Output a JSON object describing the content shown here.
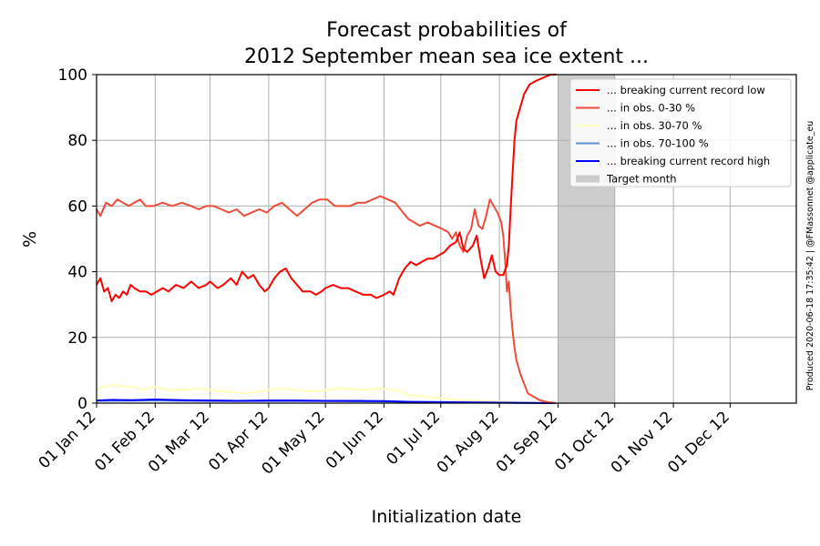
{
  "chart_data": {
    "type": "line",
    "title": "Forecast probabilities of\n2012 September mean sea ice extent ...",
    "title_lines": [
      "Forecast probabilities of",
      "2012 September mean sea ice extent ..."
    ],
    "xlabel": "Initialization date",
    "ylabel": "%",
    "ylim": [
      0,
      100
    ],
    "yticks": [
      0,
      20,
      40,
      60,
      80,
      100
    ],
    "xlim": [
      "2012-01-01",
      "2013-01-05"
    ],
    "xticks": [
      {
        "date": "2012-01-01",
        "label": "01 Jan 12"
      },
      {
        "date": "2012-02-01",
        "label": "01 Feb 12"
      },
      {
        "date": "2012-03-01",
        "label": "01 Mar 12"
      },
      {
        "date": "2012-04-01",
        "label": "01 Apr 12"
      },
      {
        "date": "2012-05-01",
        "label": "01 May 12"
      },
      {
        "date": "2012-06-01",
        "label": "01 Jun 12"
      },
      {
        "date": "2012-07-01",
        "label": "01 Jul 12"
      },
      {
        "date": "2012-08-01",
        "label": "01 Aug 12"
      },
      {
        "date": "2012-09-01",
        "label": "01 Sep 12"
      },
      {
        "date": "2012-10-01",
        "label": "01 Oct 12"
      },
      {
        "date": "2012-11-01",
        "label": "01 Nov 12"
      },
      {
        "date": "2012-12-01",
        "label": "01 Dec 12"
      }
    ],
    "grid": true,
    "legend_position": "top-right",
    "target_month": {
      "label": "Target month",
      "start": "2012-09-01",
      "end": "2012-10-01",
      "color": "#cccccc"
    },
    "series": [
      {
        "name": "... breaking current record low",
        "color": "#ff0000",
        "points": [
          [
            "2012-01-01",
            36
          ],
          [
            "2012-01-03",
            38
          ],
          [
            "2012-01-05",
            34
          ],
          [
            "2012-01-07",
            35
          ],
          [
            "2012-01-09",
            31
          ],
          [
            "2012-01-11",
            33
          ],
          [
            "2012-01-13",
            32
          ],
          [
            "2012-01-15",
            34
          ],
          [
            "2012-01-17",
            33
          ],
          [
            "2012-01-19",
            36
          ],
          [
            "2012-01-21",
            35
          ],
          [
            "2012-01-24",
            34
          ],
          [
            "2012-01-27",
            34
          ],
          [
            "2012-01-30",
            33
          ],
          [
            "2012-02-02",
            34
          ],
          [
            "2012-02-05",
            35
          ],
          [
            "2012-02-08",
            34
          ],
          [
            "2012-02-12",
            36
          ],
          [
            "2012-02-16",
            35
          ],
          [
            "2012-02-20",
            37
          ],
          [
            "2012-02-24",
            35
          ],
          [
            "2012-02-28",
            36
          ],
          [
            "2012-03-01",
            37
          ],
          [
            "2012-03-05",
            35
          ],
          [
            "2012-03-08",
            36
          ],
          [
            "2012-03-12",
            38
          ],
          [
            "2012-03-15",
            36
          ],
          [
            "2012-03-18",
            40
          ],
          [
            "2012-03-21",
            38
          ],
          [
            "2012-03-24",
            39
          ],
          [
            "2012-03-27",
            36
          ],
          [
            "2012-03-30",
            34
          ],
          [
            "2012-04-01",
            35
          ],
          [
            "2012-04-04",
            38
          ],
          [
            "2012-04-07",
            40
          ],
          [
            "2012-04-10",
            41
          ],
          [
            "2012-04-13",
            38
          ],
          [
            "2012-04-16",
            36
          ],
          [
            "2012-04-19",
            34
          ],
          [
            "2012-04-23",
            34
          ],
          [
            "2012-04-26",
            33
          ],
          [
            "2012-04-29",
            34
          ],
          [
            "2012-05-01",
            35
          ],
          [
            "2012-05-05",
            36
          ],
          [
            "2012-05-09",
            35
          ],
          [
            "2012-05-13",
            35
          ],
          [
            "2012-05-17",
            34
          ],
          [
            "2012-05-21",
            33
          ],
          [
            "2012-05-25",
            33
          ],
          [
            "2012-05-28",
            32
          ],
          [
            "2012-06-01",
            33
          ],
          [
            "2012-06-04",
            34
          ],
          [
            "2012-06-06",
            33
          ],
          [
            "2012-06-09",
            38
          ],
          [
            "2012-06-12",
            41
          ],
          [
            "2012-06-15",
            43
          ],
          [
            "2012-06-18",
            42
          ],
          [
            "2012-06-21",
            43
          ],
          [
            "2012-06-24",
            44
          ],
          [
            "2012-06-27",
            44
          ],
          [
            "2012-06-30",
            45
          ],
          [
            "2012-07-03",
            46
          ],
          [
            "2012-07-06",
            48
          ],
          [
            "2012-07-09",
            49
          ],
          [
            "2012-07-11",
            52
          ],
          [
            "2012-07-13",
            47
          ],
          [
            "2012-07-15",
            46
          ],
          [
            "2012-07-18",
            48
          ],
          [
            "2012-07-20",
            51
          ],
          [
            "2012-07-22",
            44
          ],
          [
            "2012-07-24",
            38
          ],
          [
            "2012-07-26",
            41
          ],
          [
            "2012-07-28",
            45
          ],
          [
            "2012-07-30",
            40
          ],
          [
            "2012-08-01",
            39
          ],
          [
            "2012-08-03",
            39
          ],
          [
            "2012-08-05",
            42
          ],
          [
            "2012-08-06",
            48
          ],
          [
            "2012-08-07",
            60
          ],
          [
            "2012-08-08",
            70
          ],
          [
            "2012-08-09",
            80
          ],
          [
            "2012-08-10",
            86
          ],
          [
            "2012-08-12",
            90
          ],
          [
            "2012-08-14",
            94
          ],
          [
            "2012-08-17",
            97
          ],
          [
            "2012-08-20",
            98
          ],
          [
            "2012-08-24",
            99
          ],
          [
            "2012-08-28",
            100
          ],
          [
            "2012-08-31",
            100
          ]
        ]
      },
      {
        "name": "... in obs. 0-30 %",
        "color": "#ee4c3a",
        "points": [
          [
            "2012-01-01",
            59
          ],
          [
            "2012-01-03",
            57
          ],
          [
            "2012-01-06",
            61
          ],
          [
            "2012-01-09",
            60
          ],
          [
            "2012-01-12",
            62
          ],
          [
            "2012-01-15",
            61
          ],
          [
            "2012-01-18",
            60
          ],
          [
            "2012-01-21",
            61
          ],
          [
            "2012-01-24",
            62
          ],
          [
            "2012-01-27",
            60
          ],
          [
            "2012-01-31",
            60
          ],
          [
            "2012-02-05",
            61
          ],
          [
            "2012-02-10",
            60
          ],
          [
            "2012-02-15",
            61
          ],
          [
            "2012-02-20",
            60
          ],
          [
            "2012-02-24",
            59
          ],
          [
            "2012-02-28",
            60
          ],
          [
            "2012-03-03",
            60
          ],
          [
            "2012-03-07",
            59
          ],
          [
            "2012-03-11",
            58
          ],
          [
            "2012-03-15",
            59
          ],
          [
            "2012-03-19",
            57
          ],
          [
            "2012-03-23",
            58
          ],
          [
            "2012-03-27",
            59
          ],
          [
            "2012-03-31",
            58
          ],
          [
            "2012-04-04",
            60
          ],
          [
            "2012-04-08",
            61
          ],
          [
            "2012-04-12",
            59
          ],
          [
            "2012-04-16",
            57
          ],
          [
            "2012-04-20",
            59
          ],
          [
            "2012-04-24",
            61
          ],
          [
            "2012-04-28",
            62
          ],
          [
            "2012-05-02",
            62
          ],
          [
            "2012-05-06",
            60
          ],
          [
            "2012-05-10",
            60
          ],
          [
            "2012-05-14",
            60
          ],
          [
            "2012-05-18",
            61
          ],
          [
            "2012-05-22",
            61
          ],
          [
            "2012-05-26",
            62
          ],
          [
            "2012-05-30",
            63
          ],
          [
            "2012-06-03",
            62
          ],
          [
            "2012-06-07",
            61
          ],
          [
            "2012-06-11",
            58
          ],
          [
            "2012-06-14",
            56
          ],
          [
            "2012-06-17",
            55
          ],
          [
            "2012-06-20",
            54
          ],
          [
            "2012-06-24",
            55
          ],
          [
            "2012-06-28",
            54
          ],
          [
            "2012-07-02",
            53
          ],
          [
            "2012-07-05",
            52
          ],
          [
            "2012-07-07",
            50
          ],
          [
            "2012-07-09",
            52
          ],
          [
            "2012-07-11",
            48
          ],
          [
            "2012-07-13",
            46
          ],
          [
            "2012-07-15",
            51
          ],
          [
            "2012-07-17",
            53
          ],
          [
            "2012-07-19",
            59
          ],
          [
            "2012-07-21",
            54
          ],
          [
            "2012-07-23",
            53
          ],
          [
            "2012-07-25",
            57
          ],
          [
            "2012-07-27",
            62
          ],
          [
            "2012-07-29",
            60
          ],
          [
            "2012-07-31",
            58
          ],
          [
            "2012-08-02",
            55
          ],
          [
            "2012-08-03",
            51
          ],
          [
            "2012-08-04",
            44
          ],
          [
            "2012-08-05",
            34
          ],
          [
            "2012-08-06",
            37
          ],
          [
            "2012-08-07",
            28
          ],
          [
            "2012-08-08",
            22
          ],
          [
            "2012-08-09",
            17
          ],
          [
            "2012-08-10",
            13
          ],
          [
            "2012-08-12",
            9
          ],
          [
            "2012-08-14",
            6
          ],
          [
            "2012-08-16",
            3
          ],
          [
            "2012-08-19",
            2
          ],
          [
            "2012-08-22",
            1
          ],
          [
            "2012-08-25",
            0.5
          ],
          [
            "2012-08-28",
            0.2
          ],
          [
            "2012-08-31",
            0
          ]
        ]
      },
      {
        "name": "... in obs. 30-70 %",
        "color": "#ffffbf",
        "points": [
          [
            "2012-01-01",
            4
          ],
          [
            "2012-01-05",
            5
          ],
          [
            "2012-01-10",
            5.5
          ],
          [
            "2012-01-15",
            5
          ],
          [
            "2012-01-20",
            5
          ],
          [
            "2012-01-25",
            4
          ],
          [
            "2012-02-01",
            5
          ],
          [
            "2012-02-08",
            4
          ],
          [
            "2012-02-15",
            4
          ],
          [
            "2012-02-22",
            4.5
          ],
          [
            "2012-03-01",
            4
          ],
          [
            "2012-03-10",
            3.5
          ],
          [
            "2012-03-20",
            3
          ],
          [
            "2012-03-31",
            4
          ],
          [
            "2012-04-08",
            4.5
          ],
          [
            "2012-04-16",
            4
          ],
          [
            "2012-04-24",
            3.5
          ],
          [
            "2012-05-01",
            4
          ],
          [
            "2012-05-10",
            4.5
          ],
          [
            "2012-05-20",
            4
          ],
          [
            "2012-05-30",
            4.5
          ],
          [
            "2012-06-08",
            4
          ],
          [
            "2012-06-14",
            2.5
          ],
          [
            "2012-06-22",
            2
          ],
          [
            "2012-07-01",
            1.5
          ],
          [
            "2012-07-10",
            1
          ],
          [
            "2012-07-20",
            0.7
          ],
          [
            "2012-07-31",
            0.5
          ],
          [
            "2012-08-10",
            0.3
          ],
          [
            "2012-08-20",
            0.1
          ],
          [
            "2012-08-31",
            0
          ]
        ]
      },
      {
        "name": "... in obs. 70-100 %",
        "color": "#5b8fd4",
        "points": [
          [
            "2012-01-01",
            0.7
          ],
          [
            "2012-02-01",
            0.8
          ],
          [
            "2012-03-01",
            0.6
          ],
          [
            "2012-04-01",
            0.6
          ],
          [
            "2012-05-01",
            0.6
          ],
          [
            "2012-06-01",
            0.5
          ],
          [
            "2012-06-20",
            0.3
          ],
          [
            "2012-07-10",
            0.2
          ],
          [
            "2012-08-01",
            0.1
          ],
          [
            "2012-08-31",
            0
          ]
        ]
      },
      {
        "name": "... breaking current record high",
        "color": "#0000ff",
        "points": [
          [
            "2012-01-01",
            0.8
          ],
          [
            "2012-01-10",
            1.0
          ],
          [
            "2012-01-20",
            0.9
          ],
          [
            "2012-02-01",
            1.1
          ],
          [
            "2012-02-15",
            0.9
          ],
          [
            "2012-03-01",
            0.8
          ],
          [
            "2012-03-15",
            0.7
          ],
          [
            "2012-04-01",
            0.8
          ],
          [
            "2012-04-15",
            0.8
          ],
          [
            "2012-05-01",
            0.7
          ],
          [
            "2012-05-15",
            0.7
          ],
          [
            "2012-06-01",
            0.6
          ],
          [
            "2012-06-15",
            0.4
          ],
          [
            "2012-07-01",
            0.3
          ],
          [
            "2012-07-20",
            0.2
          ],
          [
            "2012-08-10",
            0.1
          ],
          [
            "2012-08-31",
            0
          ]
        ]
      }
    ]
  },
  "footer_note": "Produced 2020-06-18 17:35:42 | @FMassonnet @applicate_eu"
}
